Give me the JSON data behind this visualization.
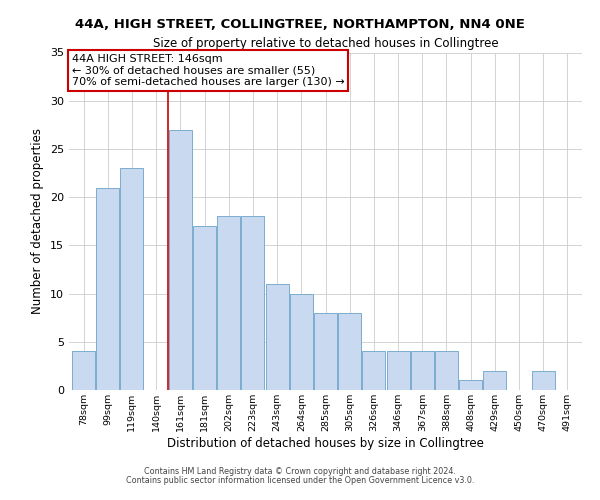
{
  "title": "44A, HIGH STREET, COLLINGTREE, NORTHAMPTON, NN4 0NE",
  "subtitle": "Size of property relative to detached houses in Collingtree",
  "xlabel": "Distribution of detached houses by size in Collingtree",
  "ylabel": "Number of detached properties",
  "bar_labels": [
    "78sqm",
    "99sqm",
    "119sqm",
    "140sqm",
    "161sqm",
    "181sqm",
    "202sqm",
    "223sqm",
    "243sqm",
    "264sqm",
    "285sqm",
    "305sqm",
    "326sqm",
    "346sqm",
    "367sqm",
    "388sqm",
    "408sqm",
    "429sqm",
    "450sqm",
    "470sqm",
    "491sqm"
  ],
  "bar_values": [
    4,
    21,
    23,
    0,
    27,
    17,
    18,
    18,
    11,
    10,
    8,
    8,
    4,
    4,
    4,
    4,
    1,
    2,
    0,
    2,
    0
  ],
  "bar_color": "#c9daf0",
  "bar_edge_color": "#7aadce",
  "vline_x": 3.5,
  "vline_color": "#cc0000",
  "annotation_text": "44A HIGH STREET: 146sqm\n← 30% of detached houses are smaller (55)\n70% of semi-detached houses are larger (130) →",
  "annotation_box_color": "#ffffff",
  "annotation_box_edge": "#cc0000",
  "ylim": [
    0,
    35
  ],
  "yticks": [
    0,
    5,
    10,
    15,
    20,
    25,
    30,
    35
  ],
  "footer1": "Contains HM Land Registry data © Crown copyright and database right 2024.",
  "footer2": "Contains public sector information licensed under the Open Government Licence v3.0.",
  "bg_color": "#ffffff",
  "grid_color": "#cccccc",
  "title_fontsize": 9.5,
  "subtitle_fontsize": 8.5,
  "xlabel_fontsize": 8.5,
  "ylabel_fontsize": 8.5,
  "footer_fontsize": 5.8,
  "ytick_fontsize": 8,
  "xtick_fontsize": 6.8,
  "ann_fontsize": 8
}
